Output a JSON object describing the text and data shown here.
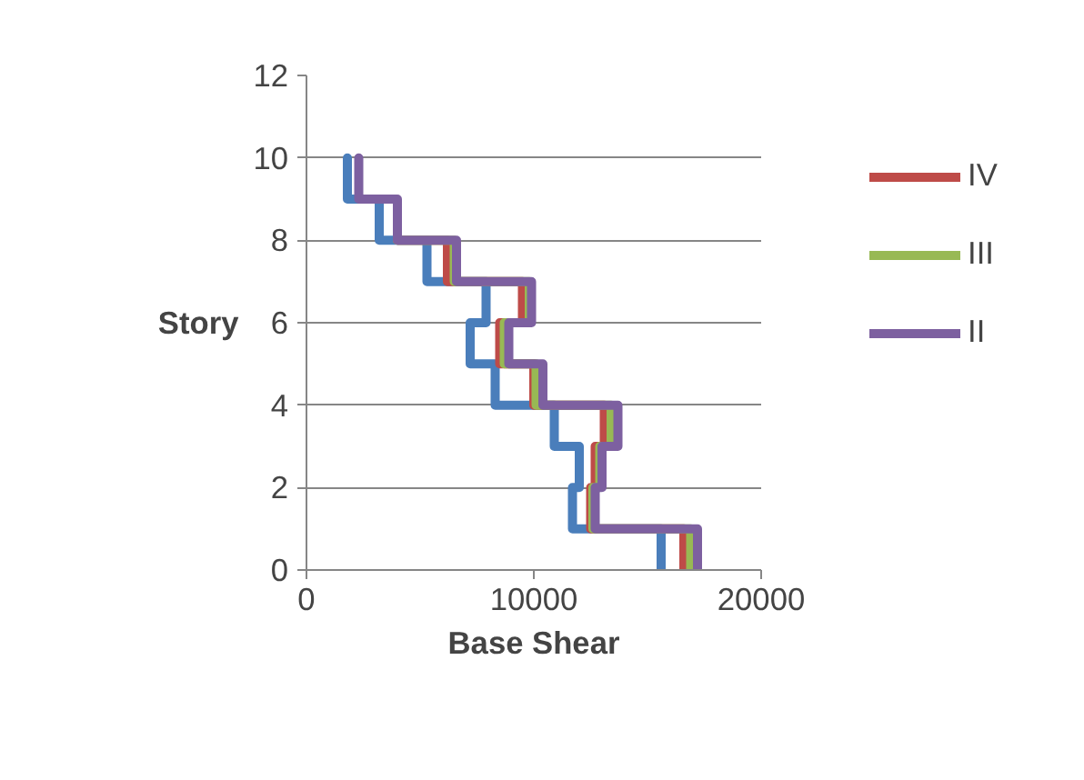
{
  "chart_data": {
    "type": "line",
    "xlabel": "Base Shear",
    "ylabel": "Story",
    "xlim": [
      0,
      20000
    ],
    "xticks": [
      0,
      10000,
      20000
    ],
    "ylim": [
      0,
      12
    ],
    "yticks": [
      0,
      2,
      4,
      6,
      8,
      10,
      12
    ],
    "grid": "y",
    "legend": "right",
    "marker": "none",
    "line_style": "solid",
    "series": [
      {
        "color": "#4a7ebb",
        "x": [
          1800,
          1800,
          3200,
          3200,
          5300,
          5300,
          7900,
          7900,
          7200,
          7200,
          8300,
          8300,
          10900,
          10900,
          12000,
          12000,
          11700,
          11700,
          15600,
          15600
        ],
        "values": [
          10,
          9,
          9,
          8,
          8,
          7,
          7,
          6,
          6,
          5,
          5,
          4,
          4,
          3,
          3,
          2,
          2,
          1,
          1,
          0
        ]
      },
      {
        "name": "IV",
        "color": "#be4b48",
        "x": [
          null,
          null,
          null,
          4000,
          6200,
          6200,
          9500,
          9500,
          8500,
          8500,
          10000,
          10000,
          13100,
          13100,
          12700,
          12700,
          12500,
          12500,
          16600,
          16600
        ],
        "values": [
          null,
          null,
          null,
          8,
          8,
          7,
          7,
          6,
          6,
          5,
          5,
          4,
          4,
          3,
          3,
          2,
          2,
          1,
          1,
          0
        ]
      },
      {
        "name": "III",
        "color": "#98b954",
        "x": [
          null,
          null,
          null,
          4000,
          6500,
          6500,
          9800,
          9800,
          8700,
          8700,
          10100,
          10100,
          13400,
          13400,
          12900,
          12900,
          12600,
          12600,
          16900,
          16900
        ],
        "values": [
          null,
          null,
          null,
          8,
          8,
          7,
          7,
          6,
          6,
          5,
          5,
          4,
          4,
          3,
          3,
          2,
          2,
          1,
          1,
          0
        ]
      },
      {
        "name": "II",
        "color": "#7d60a0",
        "x": [
          2300,
          2300,
          4000,
          4000,
          6600,
          6600,
          9900,
          9900,
          8900,
          8900,
          10400,
          10400,
          13700,
          13700,
          13000,
          13000,
          12700,
          12700,
          17200,
          17200
        ],
        "values": [
          10,
          9,
          9,
          8,
          8,
          7,
          7,
          6,
          6,
          5,
          5,
          4,
          4,
          3,
          3,
          2,
          2,
          1,
          1,
          0
        ]
      }
    ]
  }
}
